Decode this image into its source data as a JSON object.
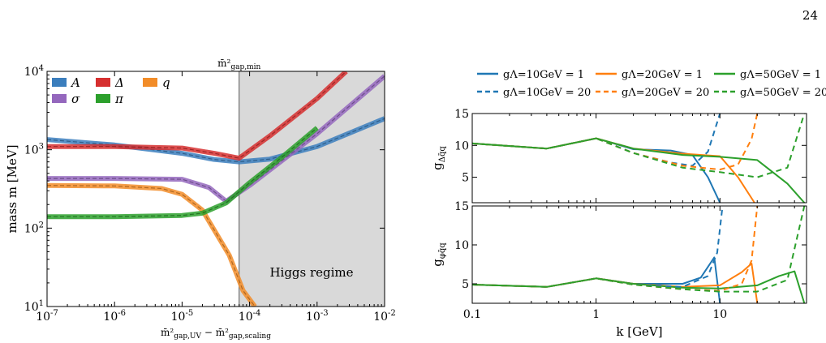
{
  "page_number": "24",
  "left_panel": {
    "type": "line",
    "xscale": "log",
    "yscale": "log",
    "xlim": [
      1e-07,
      0.01
    ],
    "ylim": [
      10,
      10000
    ],
    "x_ticks": [
      "10^-7",
      "10^-6",
      "10^-5",
      "10^-4",
      "10^-3",
      "10^-2"
    ],
    "y_ticks": [
      "10^1",
      "10^2",
      "10^3",
      "10^4"
    ],
    "ylabel": "mass m [MeV]",
    "xlabel": "m̄²gap,UV − m̄²gap,scaling",
    "top_annotation": "m̄²gap,min",
    "region_label": "Higgs regime",
    "shaded_region_from_x": 7e-05,
    "legend_placement": "top-left",
    "series": [
      {
        "name": "A",
        "color": "#3b7ebd",
        "x": [
          1e-07,
          1e-06,
          1e-05,
          3e-05,
          7e-05,
          0.0002,
          0.001,
          0.01
        ],
        "y": [
          1350,
          1150,
          900,
          750,
          700,
          760,
          1100,
          2500
        ]
      },
      {
        "name": "Δ",
        "color": "#d62f2f",
        "x": [
          1e-07,
          1e-06,
          1e-05,
          3e-05,
          7e-05,
          0.0002,
          0.001,
          0.0027
        ],
        "y": [
          1100,
          1100,
          1050,
          900,
          780,
          1500,
          4500,
          10000
        ]
      },
      {
        "name": "q",
        "color": "#f28c28",
        "x": [
          1e-07,
          1e-06,
          5e-06,
          1e-05,
          2e-05,
          5e-05,
          8e-05,
          0.00012
        ],
        "y": [
          350,
          345,
          320,
          270,
          170,
          45,
          16,
          10
        ]
      },
      {
        "name": "σ",
        "color": "#9467bd",
        "x": [
          1e-07,
          1e-06,
          1e-05,
          2.5e-05,
          4.5e-05,
          0.0001,
          0.001,
          0.01
        ],
        "y": [
          430,
          430,
          420,
          330,
          220,
          350,
          1600,
          8700
        ]
      },
      {
        "name": "π",
        "color": "#2ca02c",
        "x": [
          1e-07,
          1e-06,
          1e-05,
          2e-05,
          4.5e-05,
          0.0001,
          0.0003,
          0.001
        ],
        "y": [
          140,
          140,
          145,
          155,
          210,
          380,
          800,
          1900
        ]
      }
    ]
  },
  "right_panel": {
    "xscale": "log",
    "xlim": [
      0.1,
      50
    ],
    "x_ticks": [
      "0.1",
      "1",
      "10"
    ],
    "xlabel": "k [GeV]",
    "legend": [
      {
        "name": "gΛ=10GeV = 1",
        "color": "#1f77b4",
        "dash": false
      },
      {
        "name": "gΛ=20GeV = 1",
        "color": "#ff7f0e",
        "dash": false
      },
      {
        "name": "gΛ=50GeV = 1",
        "color": "#2ca02c",
        "dash": false
      },
      {
        "name": "gΛ=10GeV = 20",
        "color": "#1f77b4",
        "dash": true
      },
      {
        "name": "gΛ=20GeV = 20",
        "color": "#ff7f0e",
        "dash": true
      },
      {
        "name": "gΛ=50GeV = 20",
        "color": "#2ca02c",
        "dash": true
      }
    ],
    "top": {
      "ylabel": "gΔq̄q",
      "ylim": [
        1,
        15
      ],
      "y_ticks": [
        "5",
        "10",
        "15"
      ],
      "series": [
        {
          "color": "#1f77b4",
          "dash": false,
          "x": [
            0.1,
            0.4,
            1,
            2,
            4,
            6,
            8,
            10
          ],
          "y": [
            10.3,
            9.5,
            11.1,
            9.4,
            9.2,
            8.5,
            5,
            1
          ]
        },
        {
          "color": "#ff7f0e",
          "dash": false,
          "x": [
            0.1,
            0.4,
            1,
            2,
            5,
            10,
            14,
            19
          ],
          "y": [
            10.3,
            9.5,
            11.1,
            9.5,
            8.7,
            8.3,
            5,
            1
          ]
        },
        {
          "color": "#2ca02c",
          "dash": false,
          "x": [
            0.1,
            0.4,
            1,
            2,
            5,
            10,
            20,
            35,
            48
          ],
          "y": [
            10.3,
            9.5,
            11.1,
            9.5,
            8.5,
            8.2,
            7.7,
            4,
            1
          ]
        },
        {
          "color": "#1f77b4",
          "dash": true,
          "x": [
            0.1,
            0.4,
            1,
            2,
            4,
            6,
            8,
            10
          ],
          "y": [
            10.3,
            9.5,
            11.1,
            8.8,
            7.3,
            6.8,
            9,
            15
          ]
        },
        {
          "color": "#ff7f0e",
          "dash": true,
          "x": [
            0.1,
            0.4,
            1,
            2,
            5,
            10,
            14,
            18,
            20
          ],
          "y": [
            10.3,
            9.5,
            11.1,
            8.8,
            6.8,
            6.2,
            7,
            11,
            15
          ]
        },
        {
          "color": "#2ca02c",
          "dash": true,
          "x": [
            0.1,
            0.4,
            1,
            2,
            5,
            10,
            20,
            35,
            48
          ],
          "y": [
            10.3,
            9.5,
            11.1,
            8.8,
            6.5,
            5.8,
            5,
            6.5,
            15
          ]
        }
      ]
    },
    "bottom": {
      "ylabel": "gφq̄q",
      "ylim": [
        2.5,
        15
      ],
      "y_ticks": [
        "5",
        "10",
        "15"
      ],
      "series": [
        {
          "color": "#1f77b4",
          "dash": false,
          "x": [
            0.1,
            0.4,
            1,
            2,
            5,
            7,
            9,
            10
          ],
          "y": [
            4.9,
            4.6,
            5.7,
            5,
            5,
            5.8,
            8.4,
            2.5
          ]
        },
        {
          "color": "#ff7f0e",
          "dash": false,
          "x": [
            0.1,
            0.4,
            1,
            2,
            5,
            10,
            15,
            18,
            20
          ],
          "y": [
            4.9,
            4.6,
            5.7,
            5,
            4.6,
            4.8,
            6.5,
            7.6,
            2.5
          ]
        },
        {
          "color": "#2ca02c",
          "dash": false,
          "x": [
            0.1,
            0.4,
            1,
            2,
            5,
            10,
            20,
            30,
            40,
            48
          ],
          "y": [
            4.9,
            4.6,
            5.7,
            5,
            4.5,
            4.4,
            4.8,
            6,
            6.6,
            2.5
          ]
        },
        {
          "color": "#1f77b4",
          "dash": true,
          "x": [
            0.1,
            0.4,
            1,
            2,
            5,
            8,
            9.5,
            10.5
          ],
          "y": [
            4.9,
            4.6,
            5.7,
            4.9,
            4.6,
            6,
            9,
            15
          ]
        },
        {
          "color": "#ff7f0e",
          "dash": true,
          "x": [
            0.1,
            0.4,
            1,
            2,
            5,
            10,
            15,
            18,
            20
          ],
          "y": [
            4.9,
            4.6,
            5.7,
            4.9,
            4.3,
            4.1,
            5,
            8,
            15
          ]
        },
        {
          "color": "#2ca02c",
          "dash": true,
          "x": [
            0.1,
            0.4,
            1,
            2,
            5,
            10,
            20,
            35,
            48
          ],
          "y": [
            4.9,
            4.6,
            5.7,
            4.9,
            4.3,
            4,
            4,
            5.5,
            15
          ]
        }
      ]
    }
  }
}
